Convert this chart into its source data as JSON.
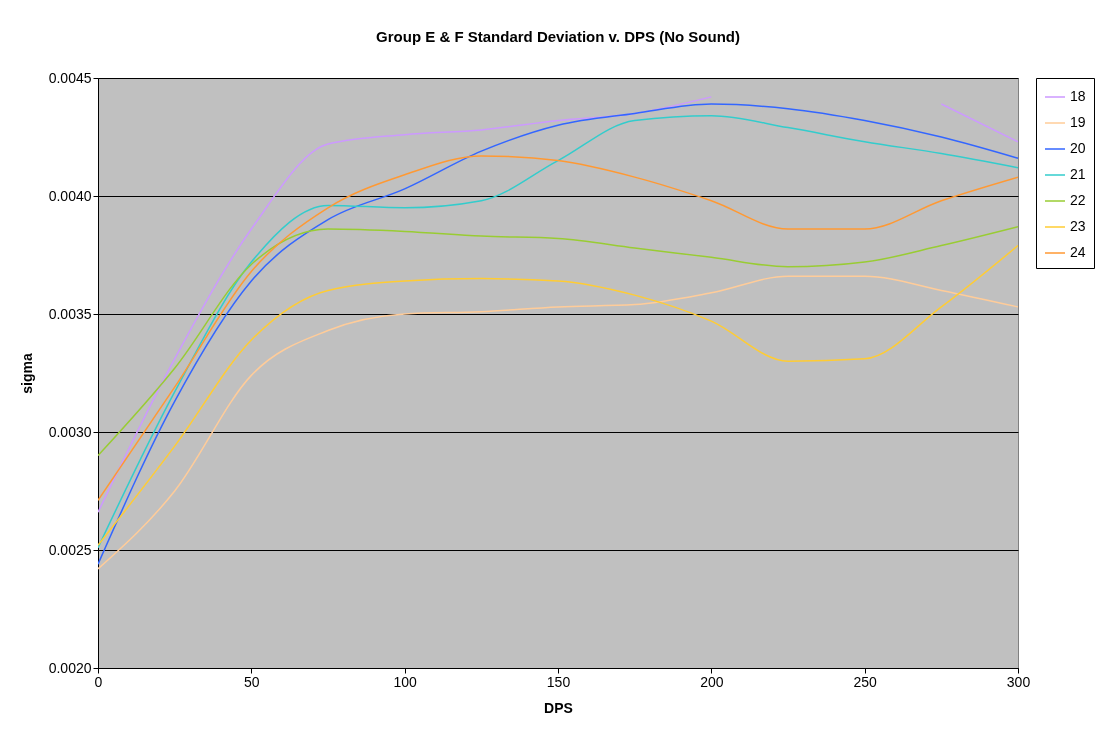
{
  "chart_data": {
    "type": "line",
    "title": "Group E & F Standard Deviation v. DPS (No Sound)",
    "xlabel": "DPS",
    "ylabel": "sigma",
    "x": [
      0,
      25,
      50,
      75,
      100,
      125,
      150,
      175,
      200,
      225,
      250,
      275,
      300
    ],
    "series": [
      {
        "name": "18",
        "color": "#cc99ff",
        "values": [
          0.00266,
          0.00331,
          0.00386,
          0.00422,
          0.00426,
          0.00428,
          0.00432,
          0.00435,
          0.00442,
          null,
          null,
          0.00439,
          0.00423
        ]
      },
      {
        "name": "19",
        "color": "#ffcc99",
        "values": [
          0.00242,
          0.00275,
          0.00324,
          0.00343,
          0.0035,
          0.00351,
          0.00353,
          0.00354,
          0.00359,
          0.00366,
          0.00366,
          0.0036,
          0.00353
        ]
      },
      {
        "name": "20",
        "color": "#3366ff",
        "values": [
          0.00244,
          0.00313,
          0.00364,
          0.0039,
          0.00403,
          0.00419,
          0.0043,
          0.00435,
          0.00439,
          0.00437,
          0.00432,
          0.00425,
          0.00416
        ]
      },
      {
        "name": "21",
        "color": "#33cccc",
        "values": [
          0.00251,
          0.00317,
          0.00372,
          0.00396,
          0.00395,
          0.00398,
          0.00415,
          0.00432,
          0.00434,
          0.00429,
          0.00423,
          0.00418,
          0.00412
        ]
      },
      {
        "name": "22",
        "color": "#99cc33",
        "values": [
          0.0029,
          0.00327,
          0.00371,
          0.00386,
          0.00385,
          0.00383,
          0.00382,
          0.00378,
          0.00374,
          0.0037,
          0.00372,
          0.00379,
          0.00387
        ]
      },
      {
        "name": "23",
        "color": "#ffcc33",
        "values": [
          0.00252,
          0.00294,
          0.00339,
          0.0036,
          0.00364,
          0.00365,
          0.00364,
          0.00358,
          0.00347,
          0.0033,
          0.00331,
          0.00353,
          0.00379
        ]
      },
      {
        "name": "24",
        "color": "#ff9933",
        "values": [
          0.00271,
          0.00319,
          0.00368,
          0.00395,
          0.00409,
          0.00417,
          0.00415,
          0.00408,
          0.00398,
          0.00386,
          0.00386,
          0.00398,
          0.00408
        ]
      }
    ],
    "xlim": [
      0,
      300
    ],
    "xticks": [
      0,
      50,
      100,
      150,
      200,
      250,
      300
    ],
    "ylim": [
      0.002,
      0.0045
    ],
    "yticks": [
      {
        "value": 0.002,
        "label": "0.0020"
      },
      {
        "value": 0.0025,
        "label": "0.0025"
      },
      {
        "value": 0.003,
        "label": "0.0030"
      },
      {
        "value": 0.0035,
        "label": "0.0035"
      },
      {
        "value": 0.004,
        "label": "0.0040"
      },
      {
        "value": 0.0045,
        "label": "0.0045"
      }
    ],
    "grid": "y",
    "legend": "right",
    "line_style": "solid"
  }
}
